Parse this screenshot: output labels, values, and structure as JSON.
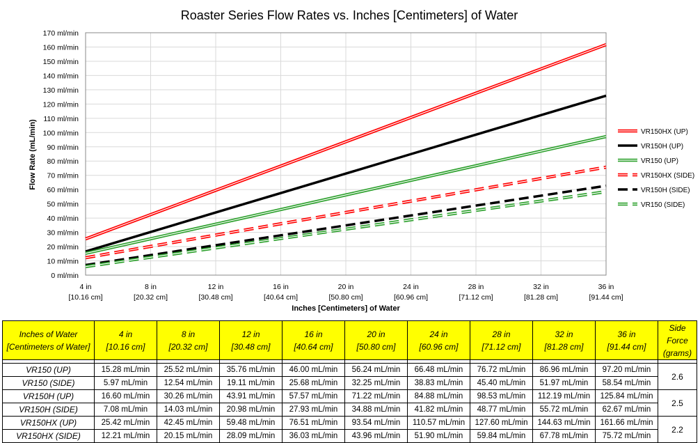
{
  "chart_data": {
    "type": "line",
    "title": "Roaster Series Flow Rates vs. Inches [Centimeters] of Water",
    "xlabel": "Inches [Centimeters] of Water",
    "ylabel": "Flow Rate (mL/min)",
    "x": [
      4,
      8,
      12,
      16,
      20,
      24,
      28,
      32,
      36
    ],
    "x_tick_labels": [
      [
        "4 in",
        "[10.16 cm]"
      ],
      [
        "8 in",
        "[20.32 cm]"
      ],
      [
        "12 in",
        "[30.48 cm]"
      ],
      [
        "16 in",
        "[40.64 cm]"
      ],
      [
        "20 in",
        "[50.80 cm]"
      ],
      [
        "24 in",
        "[60.96 cm]"
      ],
      [
        "28 in",
        "[71.12 cm]"
      ],
      [
        "32 in",
        "[81.28 cm]"
      ],
      [
        "36 in",
        "[91.44 cm]"
      ]
    ],
    "xlim": [
      4,
      36
    ],
    "ylim": [
      0,
      170
    ],
    "y_ticks": [
      0,
      10,
      20,
      30,
      40,
      50,
      60,
      70,
      80,
      90,
      100,
      110,
      120,
      130,
      140,
      150,
      160,
      170
    ],
    "y_tick_suffix": " ml/min",
    "grid": true,
    "legend_position": "right",
    "series": [
      {
        "name": "VR150HX (UP)",
        "color": "#ff0000",
        "style": "solid-double",
        "values": [
          25.42,
          42.45,
          59.48,
          76.51,
          93.54,
          110.57,
          127.6,
          144.63,
          161.66
        ]
      },
      {
        "name": "VR150H (UP)",
        "color": "#000000",
        "style": "solid",
        "values": [
          16.6,
          30.26,
          43.91,
          57.57,
          71.22,
          84.88,
          98.53,
          112.19,
          125.84
        ]
      },
      {
        "name": "VR150 (UP)",
        "color": "#2ca02c",
        "style": "solid-double",
        "values": [
          15.28,
          25.52,
          35.76,
          46.0,
          56.24,
          66.48,
          76.72,
          86.96,
          97.2
        ]
      },
      {
        "name": "VR150HX (SIDE)",
        "color": "#ff0000",
        "style": "dashed-double",
        "values": [
          12.21,
          20.15,
          28.09,
          36.03,
          43.96,
          51.9,
          59.84,
          67.78,
          75.72
        ]
      },
      {
        "name": "VR150H (SIDE)",
        "color": "#000000",
        "style": "dashed",
        "values": [
          7.08,
          14.03,
          20.98,
          27.93,
          34.88,
          41.82,
          48.77,
          55.72,
          62.67
        ]
      },
      {
        "name": "VR150 (SIDE)",
        "color": "#2ca02c",
        "style": "dashed-double",
        "values": [
          5.97,
          12.54,
          19.11,
          25.68,
          32.25,
          38.83,
          45.4,
          51.97,
          58.54
        ]
      }
    ]
  },
  "table": {
    "header_first": [
      "Inches of Water",
      "[Centimeters of Water]"
    ],
    "header_cols": [
      [
        "4 in",
        "[10.16 cm]"
      ],
      [
        "8 in",
        "[20.32 cm]"
      ],
      [
        "12 in",
        "[30.48 cm]"
      ],
      [
        "16 in",
        "[40.64 cm]"
      ],
      [
        "20 in",
        "[50.80 cm]"
      ],
      [
        "24 in",
        "[60.96 cm]"
      ],
      [
        "28 in",
        "[71.12 cm]"
      ],
      [
        "32 in",
        "[81.28 cm]"
      ],
      [
        "36 in",
        "[91.44 cm]"
      ]
    ],
    "header_last": [
      "Side",
      "Force",
      "(grams)"
    ],
    "rows": [
      {
        "model": "VR150 (UP)",
        "cells": [
          "15.28 mL/min",
          "25.52 mL/min",
          "35.76 mL/min",
          "46.00 mL/min",
          "56.24 mL/min",
          "66.48 mL/min",
          "76.72 mL/min",
          "86.96 mL/min",
          "97.20 mL/min"
        ]
      },
      {
        "model": "VR150 (SIDE)",
        "cells": [
          "5.97 mL/min",
          "12.54 mL/min",
          "19.11 mL/min",
          "25.68 mL/min",
          "32.25 mL/min",
          "38.83 mL/min",
          "45.40 mL/min",
          "51.97 mL/min",
          "58.54 mL/min"
        ]
      },
      {
        "model": "VR150H (UP)",
        "cells": [
          "16.60 mL/min",
          "30.26 mL/min",
          "43.91 mL/min",
          "57.57 mL/min",
          "71.22 mL/min",
          "84.88 mL/min",
          "98.53 mL/min",
          "112.19 mL/min",
          "125.84 mL/min"
        ]
      },
      {
        "model": "VR150H (SIDE)",
        "cells": [
          "7.08 mL/min",
          "14.03 mL/min",
          "20.98 mL/min",
          "27.93 mL/min",
          "34.88 mL/min",
          "41.82 mL/min",
          "48.77 mL/min",
          "55.72 mL/min",
          "62.67 mL/min"
        ]
      },
      {
        "model": "VR150HX (UP)",
        "cells": [
          "25.42 mL/min",
          "42.45 mL/min",
          "59.48 mL/min",
          "76.51 mL/min",
          "93.54 mL/min",
          "110.57 mL/min",
          "127.60 mL/min",
          "144.63 mL/min",
          "161.66 mL/min"
        ]
      },
      {
        "model": "VR150HX (SIDE)",
        "cells": [
          "12.21 mL/min",
          "20.15 mL/min",
          "28.09 mL/min",
          "36.03 mL/min",
          "43.96 mL/min",
          "51.90 mL/min",
          "59.84 mL/min",
          "67.78 mL/min",
          "75.72 mL/min"
        ]
      }
    ],
    "side_force": [
      "2.6",
      "2.5",
      "2.2"
    ]
  }
}
